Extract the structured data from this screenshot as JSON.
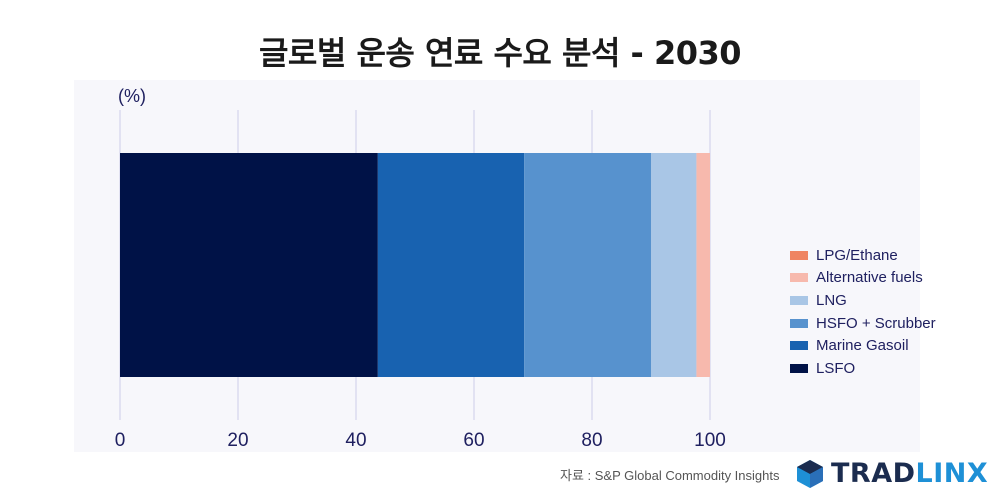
{
  "header": {
    "title": "글로벌 운송 연료 수요 분석 - 2030"
  },
  "chart_data": {
    "type": "bar",
    "orientation": "horizontal",
    "stacked": true,
    "unit_label": "(%)",
    "xlim": [
      0,
      100
    ],
    "xticks": [
      "0",
      "20",
      "40",
      "60",
      "80",
      "100"
    ],
    "grid": true,
    "legend_position": "right",
    "series": [
      {
        "name": "LSFO",
        "value": 43.7,
        "color": "#001247"
      },
      {
        "name": "Marine Gasoil",
        "value": 24.8,
        "color": "#1862b0"
      },
      {
        "name": "HSFO + Scrubber",
        "value": 21.5,
        "color": "#5792ce"
      },
      {
        "name": "LNG",
        "value": 7.7,
        "color": "#a9c6e6"
      },
      {
        "name": "Alternative fuels",
        "value": 2.3,
        "color": "#f7b9ad"
      },
      {
        "name": "LPG/Ethane",
        "value": 0,
        "color": "#ef8462"
      }
    ]
  },
  "footer": {
    "source": "자료 : S&P Global Commodity Insights",
    "brand_part1": "TRAD",
    "brand_part2": "LINX"
  }
}
